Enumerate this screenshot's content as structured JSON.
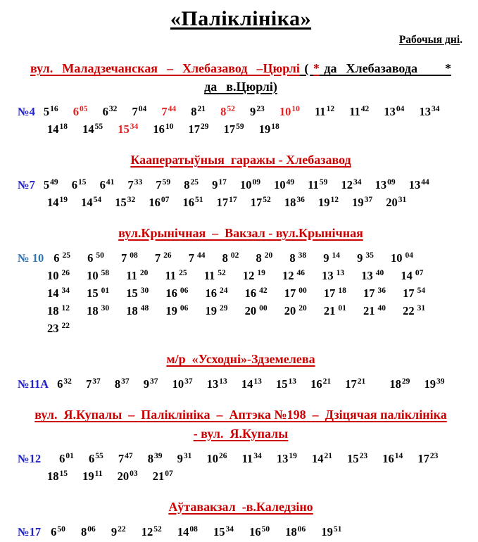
{
  "page": {
    "title": "«Паліклініка»",
    "subtitle": "Рабочыя дні",
    "subtitle_suffix": "."
  },
  "colors": {
    "header_red": "#cc0000",
    "time_red": "#e32121",
    "route_blue": "#2222cc",
    "route_light_blue": "#2e75b6",
    "text_black": "#000000"
  },
  "sections": [
    {
      "id": "route-4",
      "header_lines": [
        [
          {
            "text": "вул.  Маладзечанская  –  Хлебазавод  –Цюрлі",
            "color": "red"
          },
          {
            "text": " ( ",
            "color": "black"
          },
          {
            "text": "*",
            "color": "red"
          },
          {
            "text": " да  Хлебазавода      ",
            "color": "black"
          },
          {
            "text": "*",
            "color": "black"
          }
        ],
        [
          {
            "text": "да  в.Цюрлі)",
            "color": "black"
          }
        ]
      ],
      "header_stretch": true,
      "route": "№4",
      "route_color": "#2222cc",
      "gap": 17,
      "label_gap": 12,
      "min_space": false,
      "times": [
        {
          "h": "5",
          "m": "16"
        },
        {
          "h": "6",
          "m": "05",
          "red": true
        },
        {
          "h": "6",
          "m": "32"
        },
        {
          "h": "7",
          "m": "04"
        },
        {
          "h": "7",
          "m": "44",
          "red": true
        },
        {
          "h": "8",
          "m": "21"
        },
        {
          "h": "8",
          "m": "52",
          "red": true
        },
        {
          "h": "9",
          "m": "23"
        },
        {
          "h": "10",
          "m": "10",
          "red": true
        },
        {
          "h": "11",
          "m": "12"
        },
        {
          "h": "11",
          "m": "42"
        },
        {
          "h": "13",
          "m": "04"
        },
        {
          "h": "13",
          "m": "34"
        },
        {
          "h": "14",
          "m": "18"
        },
        {
          "h": "14",
          "m": "55"
        },
        {
          "h": "15",
          "m": "34",
          "red": true
        },
        {
          "h": "16",
          "m": "10"
        },
        {
          "h": "17",
          "m": "29"
        },
        {
          "h": "17",
          "m": "59"
        },
        {
          "h": "19",
          "m": "18"
        }
      ]
    },
    {
      "id": "route-7",
      "header_lines": [
        [
          {
            "text": "Кааператыўныя  гаражы - Хлебазавод",
            "color": "red"
          }
        ]
      ],
      "header_stretch": false,
      "route": "№7",
      "route_color": "#2222cc",
      "gap": 15,
      "label_gap": 12,
      "min_space": false,
      "times": [
        {
          "h": "5",
          "m": "49"
        },
        {
          "h": "6",
          "m": "15"
        },
        {
          "h": "6",
          "m": "41"
        },
        {
          "h": "7",
          "m": "33"
        },
        {
          "h": "7",
          "m": "59"
        },
        {
          "h": "8",
          "m": "25"
        },
        {
          "h": "9",
          "m": "17"
        },
        {
          "h": "10",
          "m": "09"
        },
        {
          "h": "10",
          "m": "49"
        },
        {
          "h": "11",
          "m": "59"
        },
        {
          "h": "12",
          "m": "34"
        },
        {
          "h": "13",
          "m": "09"
        },
        {
          "h": "13",
          "m": "44"
        },
        {
          "h": "14",
          "m": "19"
        },
        {
          "h": "14",
          "m": "54"
        },
        {
          "h": "15",
          "m": "32"
        },
        {
          "h": "16",
          "m": "07"
        },
        {
          "h": "16",
          "m": "51"
        },
        {
          "h": "17",
          "m": "17"
        },
        {
          "h": "17",
          "m": "52"
        },
        {
          "h": "18",
          "m": "36"
        },
        {
          "h": "19",
          "m": "12"
        },
        {
          "h": "19",
          "m": "37"
        },
        {
          "h": "20",
          "m": "31"
        }
      ]
    },
    {
      "id": "route-10",
      "header_lines": [
        [
          {
            "text": "вул.Крынічная  –  Вакзал - вул.Крынічная",
            "color": "red"
          }
        ]
      ],
      "header_stretch": false,
      "route": "№ 10",
      "route_color": "#2e75b6",
      "gap": 20,
      "label_gap": 14,
      "min_space": true,
      "times": [
        {
          "h": "6",
          "m": "25"
        },
        {
          "h": "6",
          "m": "50"
        },
        {
          "h": "7",
          "m": "08"
        },
        {
          "h": "7",
          "m": "26"
        },
        {
          "h": "7",
          "m": "44"
        },
        {
          "h": "8",
          "m": "02"
        },
        {
          "h": "8",
          "m": "20"
        },
        {
          "h": "8",
          "m": "38"
        },
        {
          "h": "9",
          "m": "14"
        },
        {
          "h": "9",
          "m": "35"
        },
        {
          "h": "10",
          "m": "04"
        },
        {
          "h": "10",
          "m": "26"
        },
        {
          "h": "10",
          "m": "58"
        },
        {
          "h": "11",
          "m": "20"
        },
        {
          "h": "11",
          "m": "25"
        },
        {
          "h": "11",
          "m": "52"
        },
        {
          "h": "12",
          "m": "19"
        },
        {
          "h": "12",
          "m": "46"
        },
        {
          "h": "13",
          "m": "13"
        },
        {
          "h": "13",
          "m": "40"
        },
        {
          "h": "14",
          "m": "07"
        },
        {
          "h": "14",
          "m": "34"
        },
        {
          "h": "15",
          "m": "01"
        },
        {
          "h": "15",
          "m": "30"
        },
        {
          "h": "16",
          "m": "06"
        },
        {
          "h": "16",
          "m": "24"
        },
        {
          "h": "16",
          "m": "42"
        },
        {
          "h": "17",
          "m": "00"
        },
        {
          "h": "17",
          "m": "18"
        },
        {
          "h": "17",
          "m": "36"
        },
        {
          "h": "17",
          "m": "54"
        },
        {
          "h": "18",
          "m": "12"
        },
        {
          "h": "18",
          "m": "30"
        },
        {
          "h": "18",
          "m": "48"
        },
        {
          "h": "19",
          "m": "06"
        },
        {
          "h": "19",
          "m": "29"
        },
        {
          "h": "20",
          "m": "00"
        },
        {
          "h": "20",
          "m": "20"
        },
        {
          "h": "21",
          "m": "01"
        },
        {
          "h": "21",
          "m": "40"
        },
        {
          "h": "22",
          "m": "31"
        },
        {
          "h": "23",
          "m": "22"
        }
      ]
    },
    {
      "id": "route-11a",
      "header_lines": [
        [
          {
            "text": "м/р  «Усходні»-Здземелева",
            "color": "red"
          }
        ]
      ],
      "header_stretch": false,
      "route": "№11А",
      "route_color": "#2222cc",
      "gap": 16,
      "label_gap": 12,
      "min_space": false,
      "times": [
        {
          "h": "6",
          "m": "32"
        },
        {
          "h": "7",
          "m": "37"
        },
        {
          "h": "8",
          "m": "37"
        },
        {
          "h": "9",
          "m": "37"
        },
        {
          "h": "10",
          "m": "37"
        },
        {
          "h": "13",
          "m": "13"
        },
        {
          "h": "14",
          "m": "13"
        },
        {
          "h": "15",
          "m": "13"
        },
        {
          "h": "16",
          "m": "21"
        },
        {
          "h": "17",
          "m": "21"
        },
        {
          "h": "18",
          "m": "29",
          "pre": 14
        },
        {
          "h": "19",
          "m": "39"
        }
      ]
    },
    {
      "id": "route-12",
      "header_lines": [
        [
          {
            "text": "вул.  Я.Купалы  –  Паліклініка  –  Аптэка №198  –  Дзіцячая паліклініка",
            "color": "red"
          }
        ],
        [
          {
            "text": "- вул.  Я.Купалы",
            "color": "red"
          }
        ]
      ],
      "header_stretch": false,
      "route": "№12",
      "route_color": "#2222cc",
      "gap": 17,
      "label_gap": 26,
      "min_space": false,
      "times": [
        {
          "h": "6",
          "m": "01"
        },
        {
          "h": "6",
          "m": "55"
        },
        {
          "h": "7",
          "m": "47"
        },
        {
          "h": "8",
          "m": "39"
        },
        {
          "h": "9",
          "m": "31"
        },
        {
          "h": "10",
          "m": "26"
        },
        {
          "h": "11",
          "m": "34"
        },
        {
          "h": "13",
          "m": "19"
        },
        {
          "h": "14",
          "m": "21"
        },
        {
          "h": "15",
          "m": "23"
        },
        {
          "h": "16",
          "m": "14"
        },
        {
          "h": "17",
          "m": "23"
        },
        {
          "h": "18",
          "m": "15"
        },
        {
          "h": "19",
          "m": "11"
        },
        {
          "h": "20",
          "m": "03"
        },
        {
          "h": "21",
          "m": "07"
        }
      ]
    },
    {
      "id": "route-17",
      "header_lines": [
        [
          {
            "text": "Аўтавакзал  -в.Каледзіно",
            "color": "red"
          }
        ]
      ],
      "header_stretch": false,
      "route": "№17",
      "route_color": "#2222cc",
      "gap": 18,
      "label_gap": 14,
      "min_space": false,
      "times": [
        {
          "h": "6",
          "m": "50"
        },
        {
          "h": "8",
          "m": "06"
        },
        {
          "h": "9",
          "m": "22"
        },
        {
          "h": "12",
          "m": "52"
        },
        {
          "h": "14",
          "m": "08"
        },
        {
          "h": "15",
          "m": "34"
        },
        {
          "h": "16",
          "m": "50"
        },
        {
          "h": "18",
          "m": "06"
        },
        {
          "h": "19",
          "m": "51"
        }
      ]
    }
  ]
}
